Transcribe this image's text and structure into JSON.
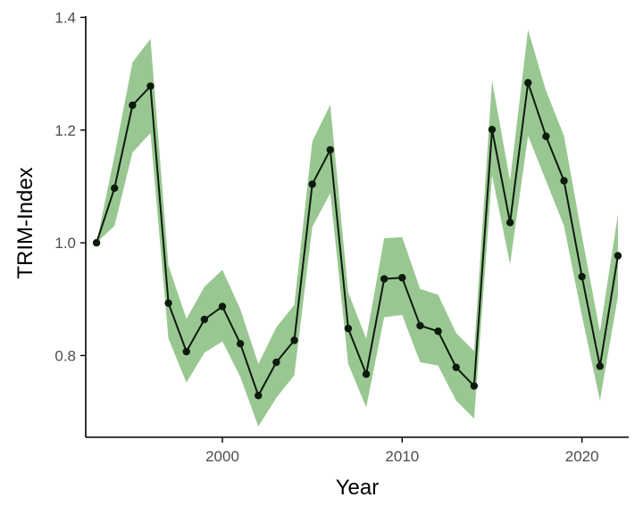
{
  "chart_data": {
    "type": "line",
    "xlabel": "Year",
    "ylabel": "TRIM-Index",
    "xlim": [
      1992.4,
      2022.6
    ],
    "ylim": [
      0.655,
      1.415
    ],
    "x_ticks": [
      2000,
      2010,
      2020
    ],
    "y_ticks": [
      0.8,
      1.0,
      1.2,
      1.4
    ],
    "x_tick_labels": [
      "2000",
      "2010",
      "2020"
    ],
    "y_tick_labels": [
      "0.8",
      "1.0",
      "1.2",
      "1.4"
    ],
    "grid": false,
    "colors": {
      "line": "#0d1a0d",
      "points": "#0d1a0d",
      "ribbon": "#93c48b",
      "axis": "#000000"
    },
    "series": [
      {
        "x": [
          1993,
          1994,
          1995,
          1996,
          1997,
          1998,
          1999,
          2000,
          2001,
          2002,
          2003,
          2004,
          2005,
          2006,
          2007,
          2008,
          2009,
          2010,
          2011,
          2012,
          2013,
          2014,
          2015,
          2016,
          2017,
          2018,
          2019,
          2020,
          2021,
          2022
        ],
        "y": [
          1.0,
          1.097,
          1.244,
          1.278,
          0.893,
          0.807,
          0.864,
          0.887,
          0.821,
          0.729,
          0.788,
          0.827,
          1.104,
          1.165,
          0.848,
          0.767,
          0.936,
          0.938,
          0.853,
          0.843,
          0.779,
          0.746,
          1.201,
          1.036,
          1.284,
          1.189,
          1.11,
          0.94,
          0.781,
          0.977
        ],
        "lower": [
          1.0,
          1.03,
          1.16,
          1.195,
          0.83,
          0.752,
          0.805,
          0.825,
          0.762,
          0.674,
          0.725,
          0.765,
          1.028,
          1.088,
          0.785,
          0.708,
          0.868,
          0.872,
          0.788,
          0.782,
          0.72,
          0.688,
          1.12,
          0.962,
          1.19,
          1.11,
          1.03,
          0.87,
          0.72,
          0.905
        ],
        "upper": [
          1.0,
          1.155,
          1.32,
          1.362,
          0.96,
          0.865,
          0.922,
          0.952,
          0.882,
          0.785,
          0.85,
          0.89,
          1.18,
          1.245,
          0.912,
          0.83,
          1.008,
          1.01,
          0.918,
          0.908,
          0.84,
          0.808,
          1.288,
          1.11,
          1.378,
          1.27,
          1.19,
          1.012,
          0.842,
          1.05
        ]
      }
    ]
  }
}
